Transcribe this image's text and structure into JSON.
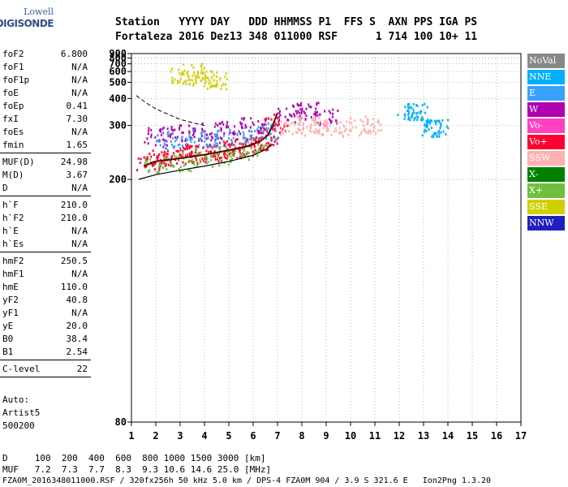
{
  "logo": {
    "line1": "Lowell",
    "line2": "DIGISONDE"
  },
  "header": {
    "line1": "Station   YYYY DAY   DDD HHMMSS P1  FFS S  AXN PPS IGA PS",
    "line2": "Fortaleza 2016 Dez13 348 011000 RSF      1 714 100 10+ 11"
  },
  "params": [
    [
      {
        "k": "foF2",
        "v": "6.800"
      },
      {
        "k": "foF1",
        "v": "N/A"
      },
      {
        "k": "foF1p",
        "v": "N/A"
      },
      {
        "k": "foE",
        "v": "N/A"
      },
      {
        "k": "foEp",
        "v": "0.41"
      },
      {
        "k": "fxI",
        "v": "7.30"
      },
      {
        "k": "foEs",
        "v": "N/A"
      },
      {
        "k": "fmin",
        "v": "1.65"
      }
    ],
    [
      {
        "k": "MUF(D)",
        "v": "24.98"
      },
      {
        "k": "M(D)",
        "v": "3.67"
      },
      {
        "k": "D",
        "v": "N/A"
      }
    ],
    [
      {
        "k": "h`F",
        "v": "210.0"
      },
      {
        "k": "h`F2",
        "v": "210.0"
      },
      {
        "k": "h`E",
        "v": "N/A"
      },
      {
        "k": "h`Es",
        "v": "N/A"
      }
    ],
    [
      {
        "k": "hmF2",
        "v": "250.5"
      },
      {
        "k": "hmF1",
        "v": "N/A"
      },
      {
        "k": "hmE",
        "v": "110.0"
      },
      {
        "k": "yF2",
        "v": "40.8"
      },
      {
        "k": "yF1",
        "v": "N/A"
      },
      {
        "k": "yE",
        "v": "20.0"
      },
      {
        "k": "B0",
        "v": "38.4"
      },
      {
        "k": "B1",
        "v": "2.54"
      }
    ],
    [
      {
        "k": "C-level",
        "v": "22"
      }
    ]
  ],
  "autoscaling": {
    "line1": "Auto:",
    "line2": "Artist5",
    "line3": "500200"
  },
  "legend": [
    {
      "label": "NoVal",
      "color": "#888888"
    },
    {
      "label": "NNE",
      "color": "#00b0ff"
    },
    {
      "label": "E",
      "color": "#3aa0ff"
    },
    {
      "label": "W",
      "color": "#b000b0"
    },
    {
      "label": "Vo-",
      "color": "#ff40c0"
    },
    {
      "label": "Vo+",
      "color": "#ff0030"
    },
    {
      "label": "SSW",
      "color": "#ffb0b0"
    },
    {
      "label": "X-",
      "color": "#008000"
    },
    {
      "label": "X+",
      "color": "#70c040"
    },
    {
      "label": "SSE",
      "color": "#d0d000"
    },
    {
      "label": "NNW",
      "color": "#2020c0"
    }
  ],
  "footer": {
    "line1": "D     100  200  400  600  800 1000 1500 3000 [km]",
    "line2": "MUF   7.2  7.3  7.7  8.3  9.3 10.6 14.6 25.0 [MHz]",
    "line3": "FZA0M_2016348011000.RSF / 320fx256h 50 kHz 5.0 km / DPS-4 FZA0M 904 / 3.9 S 321.6 E   Ion2Png 1.3.20"
  },
  "chart_data": {
    "type": "scatter",
    "xlim": [
      1,
      17
    ],
    "ylim": [
      80,
      900
    ],
    "x_ticks": [
      "1",
      "2",
      "3",
      "4",
      "5",
      "6",
      "7",
      "8",
      "9",
      "10",
      "11",
      "12",
      "13",
      "14",
      "15",
      "16",
      "17"
    ],
    "y_ticks": [
      "80",
      "200",
      "300",
      "400",
      "500",
      "600",
      "700",
      "800",
      "900"
    ],
    "y_scale": "reciprocal",
    "grid": true,
    "legend_position": "right",
    "series": [
      {
        "name": "Vo+",
        "color": "#ff0030",
        "x": [
          1.7,
          2.2,
          2.7,
          3.2,
          3.7,
          4.2,
          4.7,
          5.2,
          5.7,
          6.2,
          6.6,
          6.9
        ],
        "y": [
          225,
          232,
          236,
          238,
          240,
          242,
          244,
          247,
          252,
          258,
          275,
          310
        ]
      },
      {
        "name": "W",
        "color": "#b000b0",
        "x": [
          2.0,
          3.0,
          4.0,
          5.0,
          6.0,
          7.5,
          8.2,
          9.0
        ],
        "y": [
          275,
          280,
          285,
          290,
          300,
          340,
          350,
          330
        ]
      },
      {
        "name": "E",
        "color": "#3aa0ff",
        "x": [
          2.5,
          3.5,
          4.5,
          5.5,
          6.5
        ],
        "y": [
          265,
          270,
          268,
          275,
          285
        ]
      },
      {
        "name": "SSW",
        "color": "#ffb0b0",
        "x": [
          7.6,
          8.2,
          8.8,
          9.2,
          10.2,
          10.8
        ],
        "y": [
          300,
          305,
          300,
          295,
          300,
          305
        ]
      },
      {
        "name": "SSE",
        "color": "#d0d000",
        "x": [
          3.0,
          3.5,
          4.0,
          4.5
        ],
        "y": [
          560,
          600,
          540,
          520
        ]
      },
      {
        "name": "NNE",
        "color": "#00b0ff",
        "x": [
          12.4,
          12.7,
          13.3,
          13.5
        ],
        "y": [
          345,
          345,
          295,
          295
        ]
      },
      {
        "name": "X+",
        "color": "#70c040",
        "x": [
          2.0,
          3.0,
          4.0,
          5.0,
          6.0
        ],
        "y": [
          220,
          225,
          230,
          235,
          245
        ]
      }
    ],
    "traces": {
      "profile_solid": {
        "x": [
          1.3,
          2.0,
          3.0,
          4.0,
          5.0,
          6.0,
          6.5,
          6.8
        ],
        "y": [
          200,
          206,
          212,
          218,
          225,
          235,
          245,
          255
        ]
      },
      "trace_dark": {
        "x": [
          1.5,
          2.0,
          3.0,
          4.0,
          5.0,
          5.8,
          6.3,
          6.6,
          6.8,
          7.0
        ],
        "y": [
          218,
          225,
          230,
          236,
          244,
          252,
          262,
          275,
          300,
          340
        ]
      },
      "profile_dashed": {
        "x": [
          1.2,
          1.6,
          2.0,
          2.5,
          3.0,
          3.5,
          4.0
        ],
        "y": [
          415,
          380,
          355,
          335,
          318,
          308,
          300
        ]
      }
    }
  }
}
